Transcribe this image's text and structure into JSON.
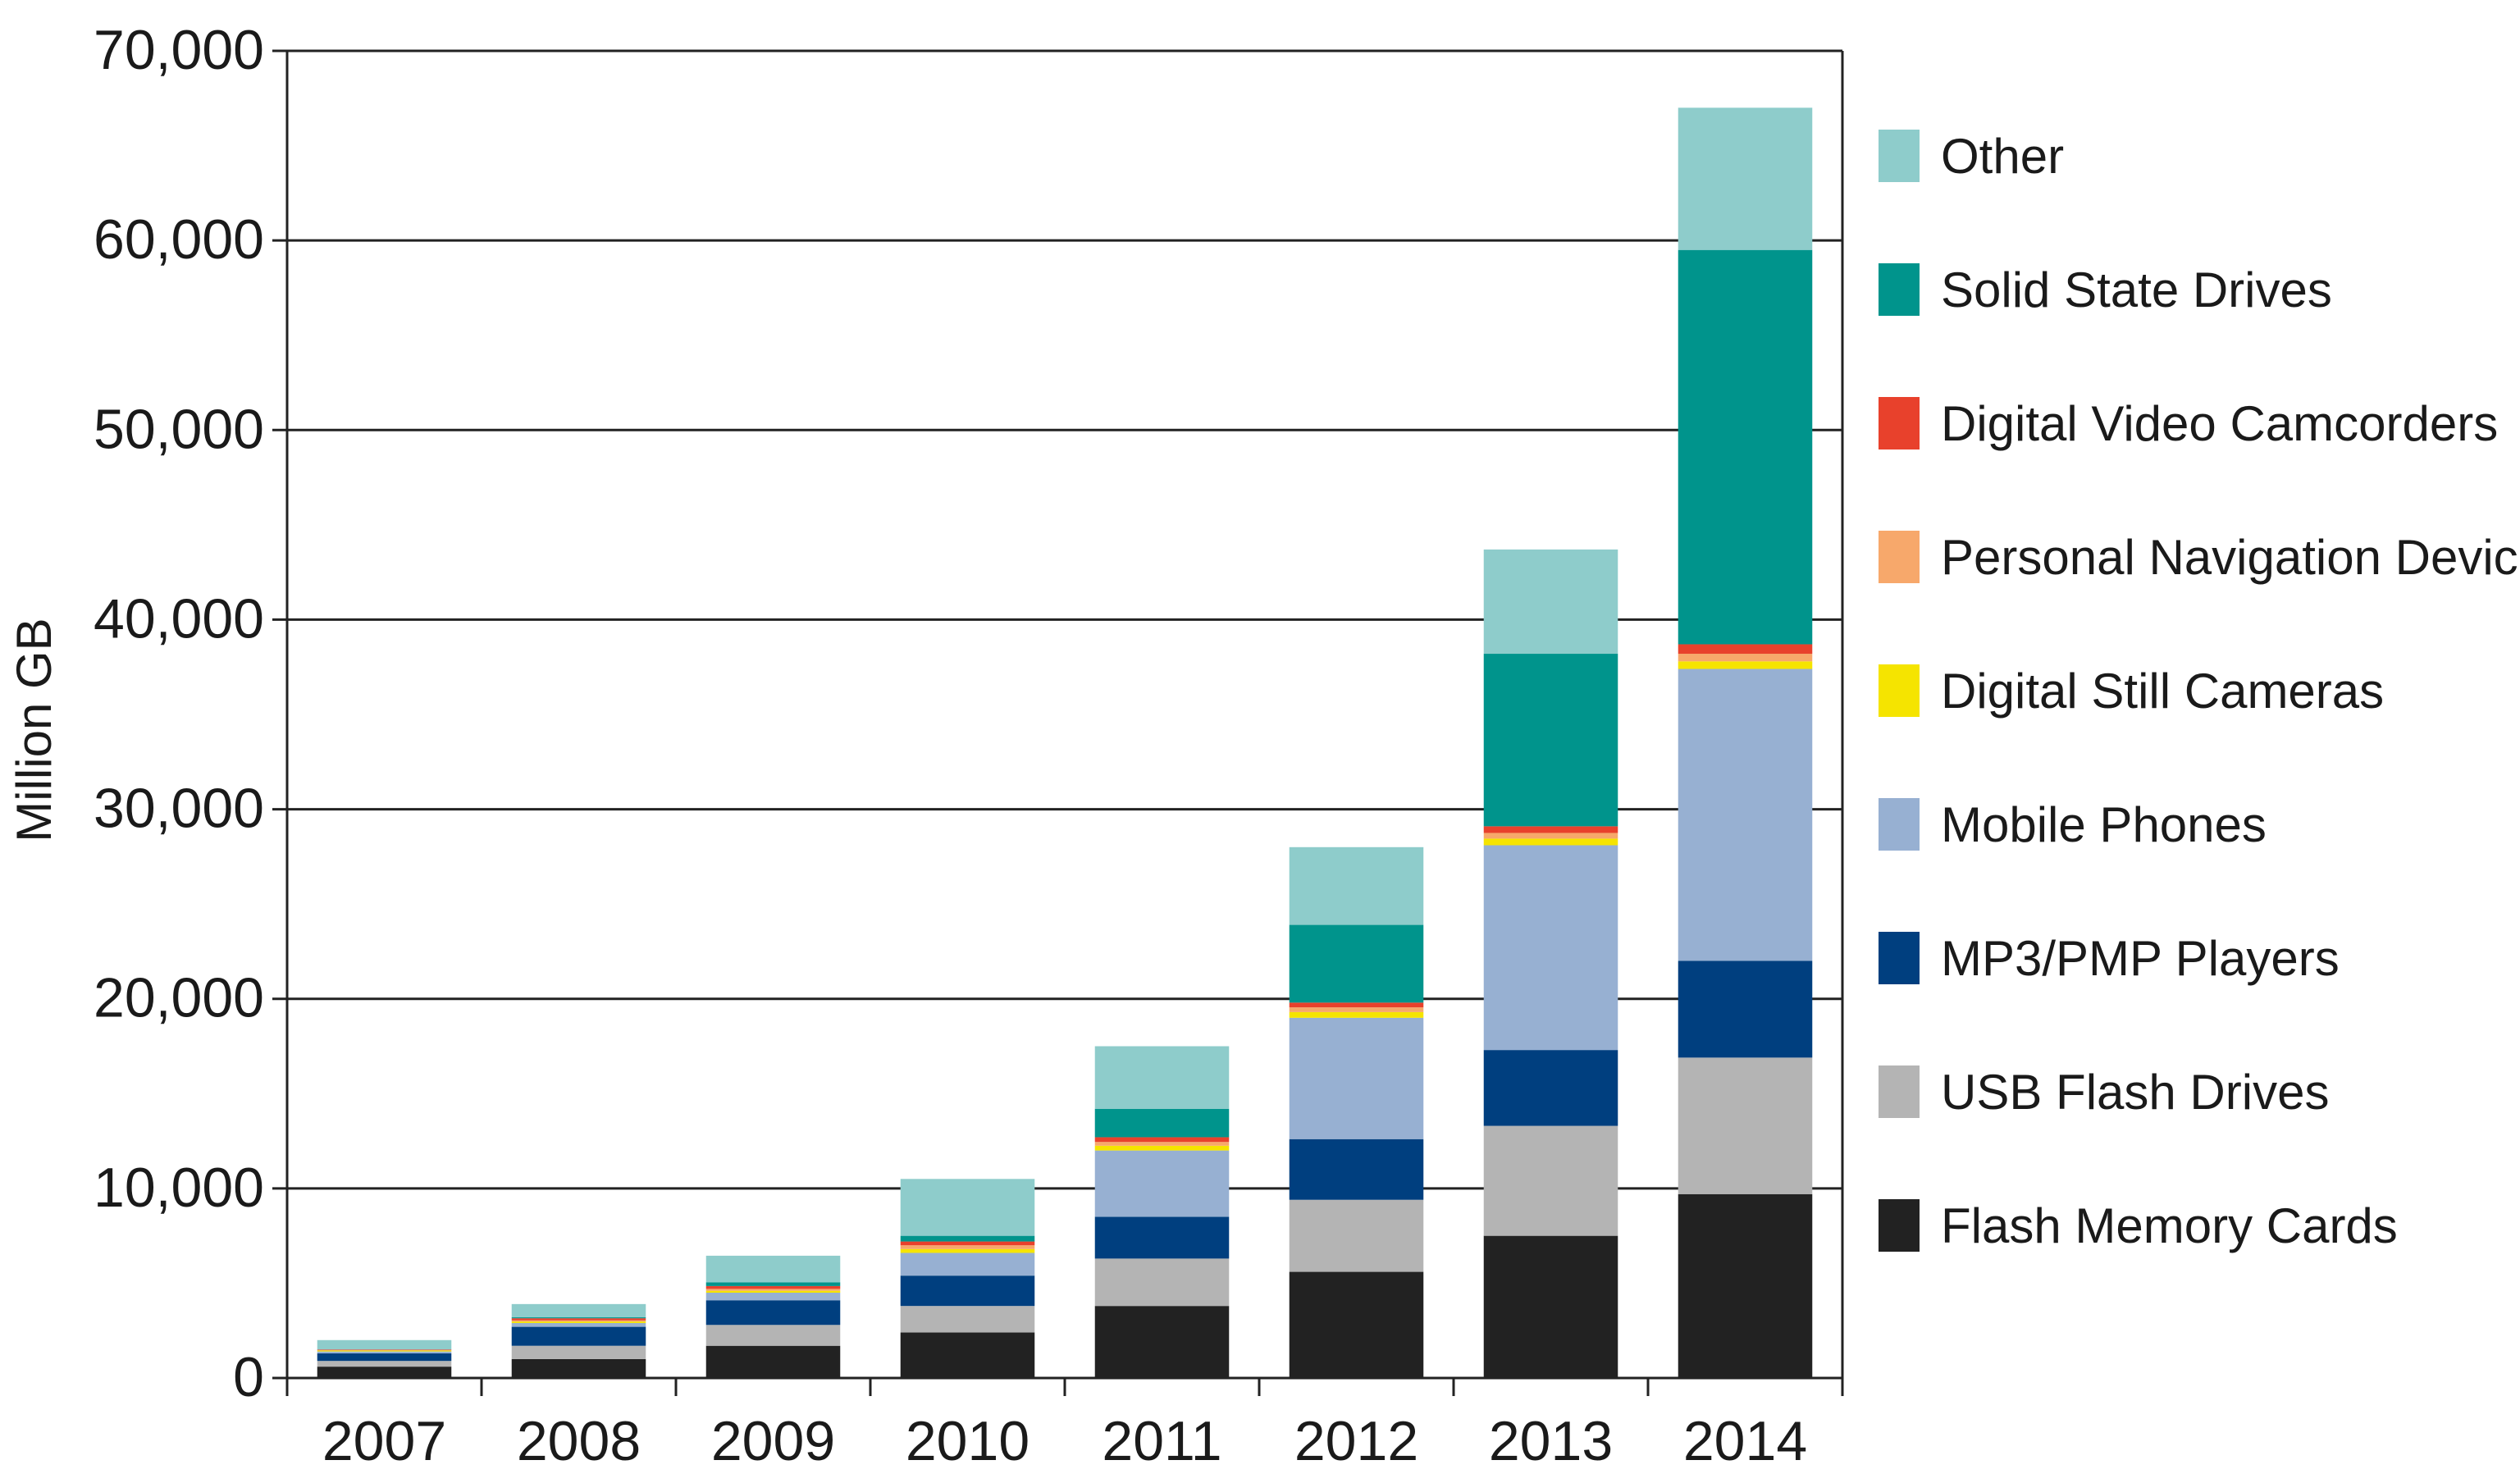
{
  "chart_data": {
    "type": "bar",
    "stacked": true,
    "title": "",
    "xlabel": "",
    "ylabel": "Million GB",
    "ylim": [
      0,
      70000
    ],
    "yticks": [
      0,
      10000,
      20000,
      30000,
      40000,
      50000,
      60000,
      70000
    ],
    "ytick_labels": [
      "0",
      "10,000",
      "20,000",
      "30,000",
      "40,000",
      "50,000",
      "60,000",
      "70,000"
    ],
    "grid": true,
    "legend_position": "right",
    "categories": [
      "2007",
      "2008",
      "2009",
      "2010",
      "2011",
      "2012",
      "2013",
      "2014"
    ],
    "series": [
      {
        "name": "Flash Memory Cards",
        "color": "#222222",
        "values": [
          600,
          1000,
          1700,
          2400,
          3800,
          5600,
          7500,
          9700
        ]
      },
      {
        "name": "USB Flash Drives",
        "color": "#b4b4b4",
        "values": [
          300,
          700,
          1100,
          1400,
          2500,
          3800,
          5800,
          7200
        ]
      },
      {
        "name": "MP3/PMP Players",
        "color": "#003f7f",
        "values": [
          400,
          1000,
          1300,
          1600,
          2200,
          3200,
          4000,
          5100
        ]
      },
      {
        "name": "Mobile Phones",
        "color": "#97b0d2",
        "values": [
          100,
          200,
          400,
          1200,
          3500,
          6400,
          10800,
          15400
        ]
      },
      {
        "name": "Digital Still Cameras",
        "color": "#f5e400",
        "values": [
          50,
          80,
          100,
          200,
          250,
          300,
          350,
          400
        ]
      },
      {
        "name": "Personal Navigation Devices",
        "color": "#f7a86b",
        "values": [
          20,
          60,
          100,
          200,
          200,
          250,
          300,
          400
        ]
      },
      {
        "name": "Digital Video Camcorders",
        "color": "#e8412c",
        "values": [
          30,
          110,
          150,
          200,
          250,
          250,
          350,
          500
        ]
      },
      {
        "name": "Solid State Drives",
        "color": "#00948c",
        "values": [
          0,
          50,
          200,
          300,
          1500,
          4100,
          9100,
          20800
        ]
      },
      {
        "name": "Other",
        "color": "#8ecccb",
        "values": [
          500,
          700,
          1400,
          3000,
          3300,
          4100,
          5500,
          7500
        ]
      }
    ],
    "legend_order": [
      "Other",
      "Solid State Drives",
      "Digital Video Camcorders",
      "Personal Navigation Devices",
      "Digital Still Cameras",
      "Mobile Phones",
      "MP3/PMP Players",
      "USB Flash Drives",
      "Flash Memory Cards"
    ]
  }
}
